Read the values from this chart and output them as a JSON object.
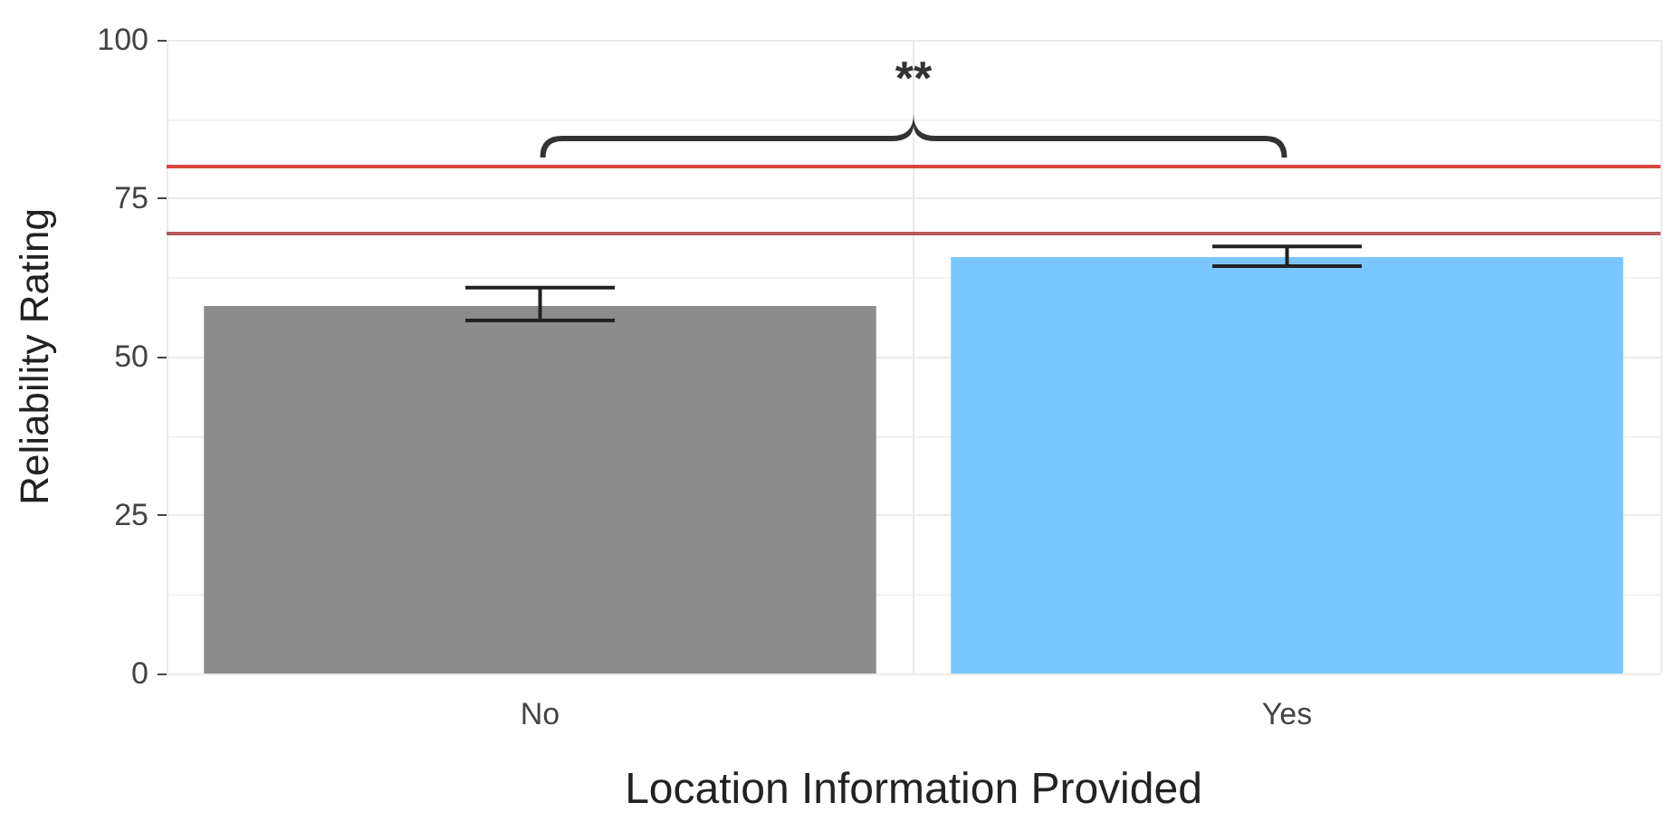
{
  "chart_data": {
    "type": "bar",
    "xlabel": "Location Information Provided",
    "ylabel": "Reliability Rating",
    "categories": [
      "No",
      "Yes"
    ],
    "values": [
      58,
      65.7
    ],
    "colors": [
      "#8c8c8c",
      "#7ac6ff"
    ],
    "errors": [
      [
        55.7,
        60.9
      ],
      [
        64.3,
        67.4
      ]
    ],
    "ylim": [
      0,
      100
    ],
    "yticks": [
      0,
      25,
      50,
      75,
      100
    ],
    "grid": true,
    "ref_lines": [
      {
        "axis": "y",
        "value": 80,
        "label": null,
        "color": "#d9453f"
      },
      {
        "axis": "y",
        "value": 69.4,
        "label": null,
        "color": "#b55a5a"
      }
    ],
    "annotations": [
      "**"
    ]
  }
}
